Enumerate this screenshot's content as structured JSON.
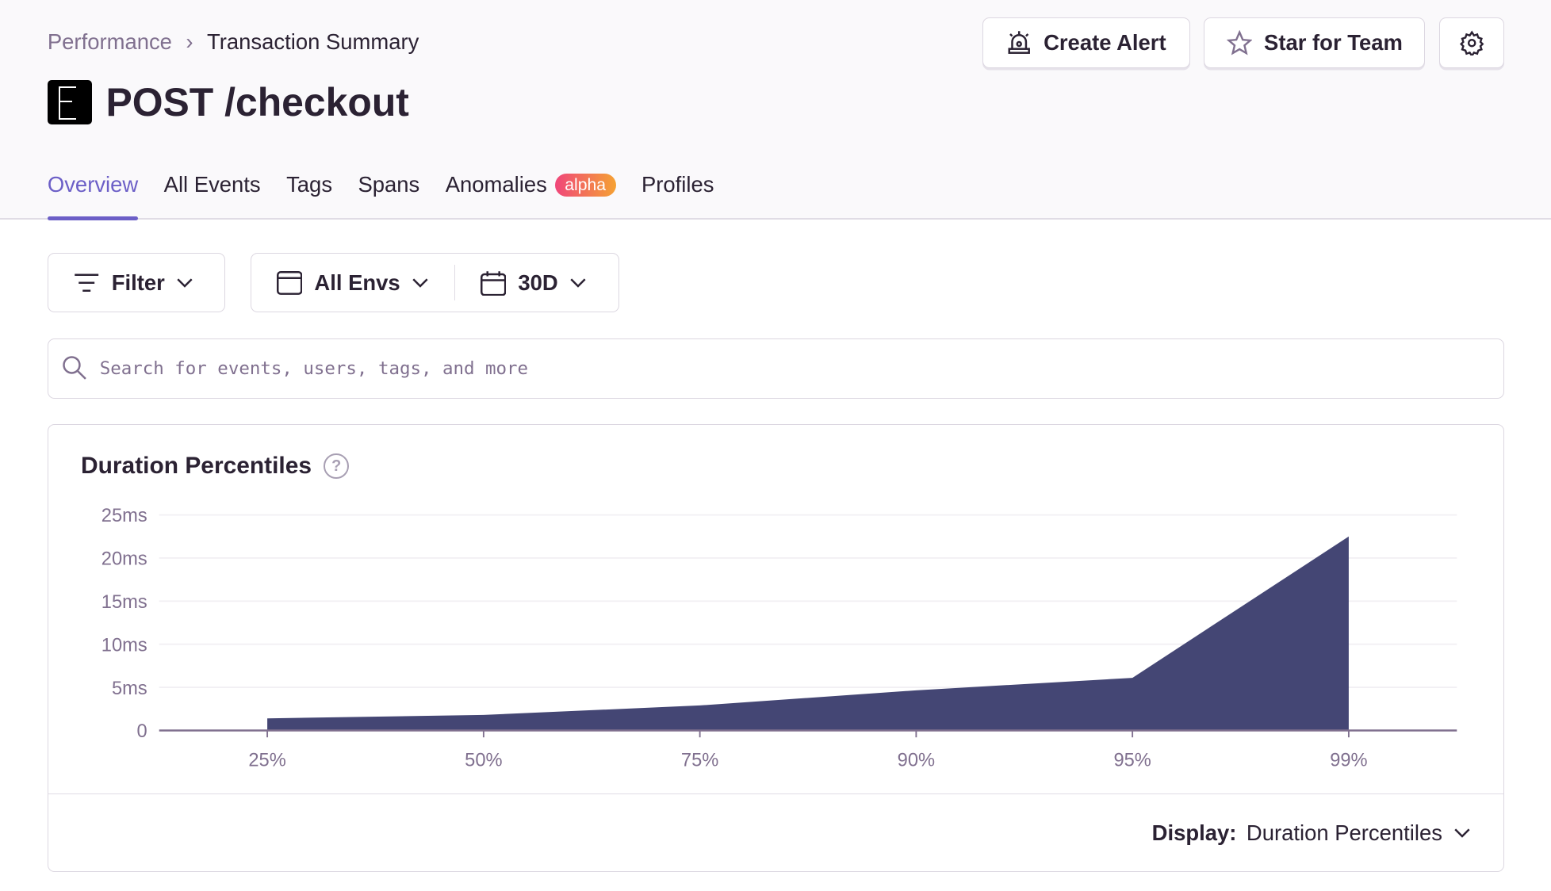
{
  "breadcrumb": {
    "items": [
      "Performance",
      "Transaction Summary"
    ]
  },
  "header": {
    "title": "POST /checkout",
    "create_alert": "Create Alert",
    "star_for_team": "Star for Team"
  },
  "tabs": [
    {
      "label": "Overview",
      "active": true
    },
    {
      "label": "All Events"
    },
    {
      "label": "Tags"
    },
    {
      "label": "Spans"
    },
    {
      "label": "Anomalies",
      "badge": "alpha"
    },
    {
      "label": "Profiles"
    }
  ],
  "filters": {
    "filter": "Filter",
    "environment": "All Envs",
    "period": "30D"
  },
  "search": {
    "placeholder": "Search for events, users, tags, and more"
  },
  "panel": {
    "title": "Duration Percentiles",
    "display_label": "Display:",
    "display_value": "Duration Percentiles"
  },
  "colors": {
    "accent": "#6c5fc7",
    "area": "#444674"
  },
  "chart_data": {
    "type": "area",
    "categories": [
      "25%",
      "50%",
      "75%",
      "90%",
      "95%",
      "99%"
    ],
    "values": [
      1.4,
      1.8,
      2.9,
      4.65,
      6.1,
      22.5
    ],
    "yticks": [
      "0",
      "5ms",
      "10ms",
      "15ms",
      "20ms",
      "25ms"
    ],
    "ylim": [
      0,
      25
    ],
    "grid": true
  }
}
